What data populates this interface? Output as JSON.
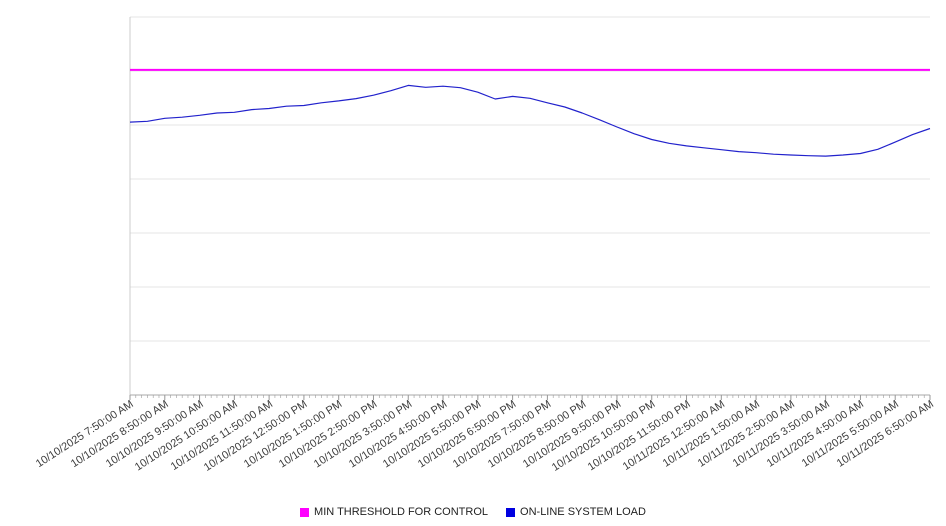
{
  "legend": {
    "items": [
      {
        "label": "MIN THRESHOLD FOR CONTROL",
        "color": "#ff00ff"
      },
      {
        "label": "ON-LINE SYSTEM LOAD",
        "color": "#0000e0"
      }
    ]
  },
  "chart_data": {
    "type": "line",
    "title": "",
    "xlabel": "",
    "ylabel": "",
    "y_axis": {
      "labels_visible": false,
      "ylim": [
        0,
        100
      ],
      "gridline_divisions": 7
    },
    "layout": {
      "grid_color": "#e6e6e6",
      "axis_color": "#aaaaaa",
      "plot_border_color": "#cccccc",
      "tick_color": "#999999",
      "legend_position": "bottom-center",
      "x_labels_rotated": true
    },
    "x_tick_labels": [
      "10/10/2025 7:50:00 AM",
      "10/10/2025 8:50:00 AM",
      "10/10/2025 9:50:00 AM",
      "10/10/2025 10:50:00 AM",
      "10/10/2025 11:50:00 AM",
      "10/10/2025 12:50:00 PM",
      "10/10/2025 1:50:00 PM",
      "10/10/2025 2:50:00 PM",
      "10/10/2025 3:50:00 PM",
      "10/10/2025 4:50:00 PM",
      "10/10/2025 5:50:00 PM",
      "10/10/2025 6:50:00 PM",
      "10/10/2025 7:50:00 PM",
      "10/10/2025 8:50:00 PM",
      "10/10/2025 9:50:00 PM",
      "10/10/2025 10:50:00 PM",
      "10/10/2025 11:50:00 PM",
      "10/11/2025 12:50:00 AM",
      "10/11/2025 1:50:00 AM",
      "10/11/2025 2:50:00 AM",
      "10/11/2025 3:50:00 AM",
      "10/11/2025 4:50:00 AM",
      "10/11/2025 5:50:00 AM",
      "10/11/2025 6:50:00 AM"
    ],
    "series": [
      {
        "name": "MIN THRESHOLD FOR CONTROL",
        "kind": "threshold-horizontal-line",
        "color": "#ff00ff",
        "value": 86
      },
      {
        "name": "ON-LINE SYSTEM LOAD",
        "kind": "line",
        "color": "#2222cc",
        "sampling_note": "values sampled every 30 minutes from 7:50 AM 10/10 to 6:50 AM 10/11, unitless scale 0-100 (no y-axis labels visible)",
        "values": [
          72.2,
          72.4,
          73.2,
          73.5,
          74.0,
          74.6,
          74.8,
          75.5,
          75.8,
          76.4,
          76.6,
          77.3,
          77.8,
          78.4,
          79.3,
          80.5,
          81.9,
          81.4,
          81.7,
          81.3,
          80.1,
          78.3,
          79.0,
          78.5,
          77.3,
          76.2,
          74.6,
          72.8,
          70.9,
          69.1,
          67.6,
          66.6,
          65.9,
          65.4,
          64.9,
          64.4,
          64.1,
          63.7,
          63.5,
          63.3,
          63.2,
          63.5,
          63.9,
          65.0,
          66.9,
          68.9,
          70.5
        ]
      }
    ]
  }
}
